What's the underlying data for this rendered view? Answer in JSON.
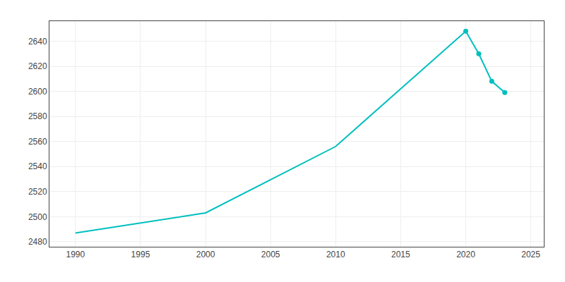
{
  "chart_data": {
    "type": "line",
    "x": [
      1990,
      2000,
      2010,
      2020,
      2021,
      2022,
      2023
    ],
    "series": [
      {
        "color": "#00BFBF",
        "values": [
          2487,
          2503,
          2556,
          2648,
          2630,
          2608,
          2599
        ],
        "marker": "none",
        "line_style": "solid"
      },
      {
        "color": "#00BFBF",
        "values": [
          null,
          null,
          null,
          2648,
          2630,
          2608,
          2599
        ],
        "marker": "circle",
        "line_style": "none"
      }
    ],
    "xlim": [
      1988,
      2026
    ],
    "xticks": [
      1990,
      1995,
      2000,
      2005,
      2010,
      2015,
      2020,
      2025
    ],
    "ylim": [
      2476,
      2656
    ],
    "yticks": [
      2480,
      2500,
      2520,
      2540,
      2560,
      2580,
      2600,
      2620,
      2640
    ],
    "grid": true
  }
}
